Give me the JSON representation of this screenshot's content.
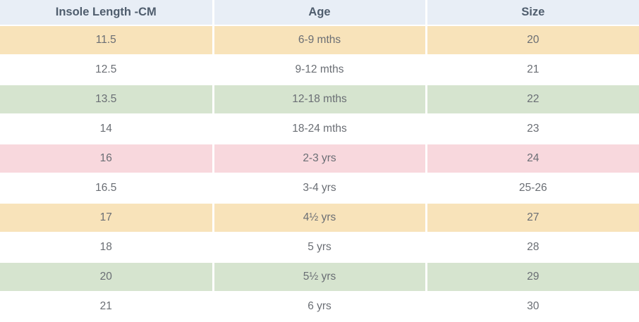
{
  "table": {
    "columns": [
      {
        "key": "insole",
        "label": "Insole Length -CM"
      },
      {
        "key": "age",
        "label": "Age"
      },
      {
        "key": "size",
        "label": "Size"
      }
    ],
    "rows": [
      {
        "insole": "11.5",
        "age": "6-9 mths",
        "size": "20",
        "tint": "orange"
      },
      {
        "insole": "12.5",
        "age": "9-12 mths",
        "size": "21",
        "tint": "white"
      },
      {
        "insole": "13.5",
        "age": "12-18 mths",
        "size": "22",
        "tint": "green"
      },
      {
        "insole": "14",
        "age": "18-24 mths",
        "size": "23",
        "tint": "white"
      },
      {
        "insole": "16",
        "age": "2-3 yrs",
        "size": "24",
        "tint": "pink"
      },
      {
        "insole": "16.5",
        "age": "3-4 yrs",
        "size": "25-26",
        "tint": "white"
      },
      {
        "insole": "17",
        "age": "4½ yrs",
        "size": "27",
        "tint": "orange"
      },
      {
        "insole": "18",
        "age": "5 yrs",
        "size": "28",
        "tint": "white"
      },
      {
        "insole": "20",
        "age": "5½ yrs",
        "size": "29",
        "tint": "green"
      },
      {
        "insole": "21",
        "age": "6 yrs",
        "size": "30",
        "tint": "white"
      }
    ],
    "colors": {
      "header_bg": "#e8eef6",
      "header_text": "#4f5d6d",
      "row_orange": "#f8e3ba",
      "row_green": "#d6e4cf",
      "row_pink": "#f8d8dd",
      "row_white": "#ffffff",
      "cell_text": "#6a6e74",
      "separator_gray": "#dde1e5"
    }
  },
  "chart_data": {
    "type": "table",
    "title": "",
    "columns": [
      "Insole Length -CM",
      "Age",
      "Size"
    ],
    "rows": [
      [
        "11.5",
        "6-9 mths",
        "20"
      ],
      [
        "12.5",
        "9-12 mths",
        "21"
      ],
      [
        "13.5",
        "12-18 mths",
        "22"
      ],
      [
        "14",
        "18-24 mths",
        "23"
      ],
      [
        "16",
        "2-3 yrs",
        "24"
      ],
      [
        "16.5",
        "3-4 yrs",
        "25-26"
      ],
      [
        "17",
        "4½ yrs",
        "27"
      ],
      [
        "18",
        "5 yrs",
        "28"
      ],
      [
        "20",
        "5½ yrs",
        "29"
      ],
      [
        "21",
        "6 yrs",
        "30"
      ]
    ]
  }
}
